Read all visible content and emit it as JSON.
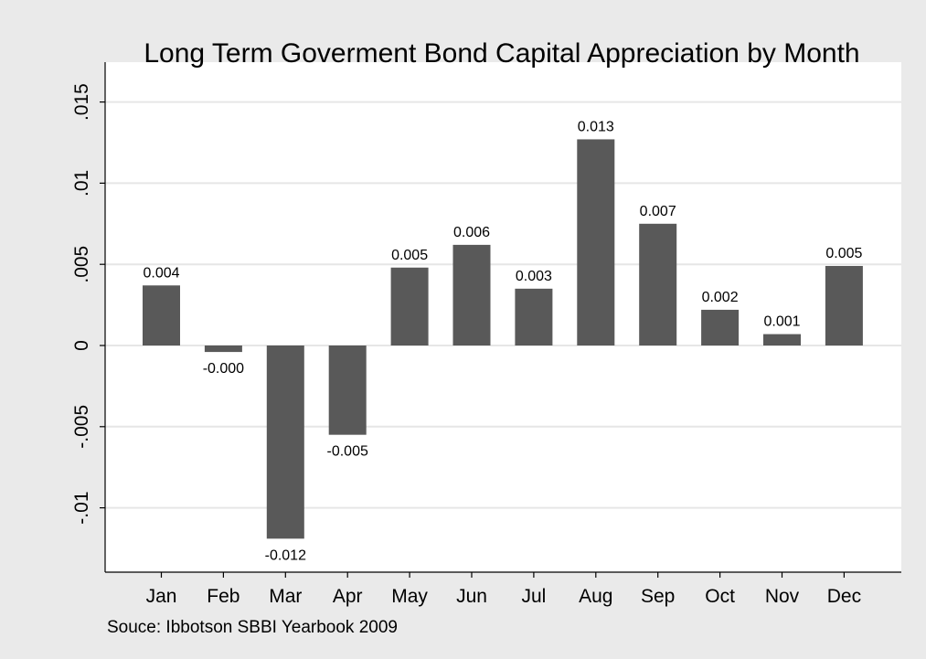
{
  "chart_data": {
    "type": "bar",
    "title": "Long Term Goverment Bond Capital Appreciation by Month",
    "note": "Souce: Ibbotson SBBI Yearbook 2009",
    "xlabel": "",
    "ylabel": "",
    "categories": [
      "Jan",
      "Feb",
      "Mar",
      "Apr",
      "May",
      "Jun",
      "Jul",
      "Aug",
      "Sep",
      "Oct",
      "Nov",
      "Dec"
    ],
    "values": [
      0.0037,
      -0.0004,
      -0.0119,
      -0.0055,
      0.0048,
      0.0062,
      0.0035,
      0.0127,
      0.0075,
      0.0022,
      0.0007,
      0.0049
    ],
    "value_labels": [
      "0.004",
      "-0.000",
      "-0.012",
      "-0.005",
      "0.005",
      "0.006",
      "0.003",
      "0.013",
      "0.007",
      "0.002",
      "0.001",
      "0.005"
    ],
    "yticks": [
      -0.01,
      -0.005,
      0,
      0.005,
      0.01,
      0.015
    ],
    "ytick_labels": [
      "-.01",
      "-.005",
      "0",
      ".005",
      ".01",
      ".015"
    ],
    "ylim": [
      -0.0139,
      0.0155
    ],
    "grid": true,
    "bar_color": "#595959",
    "plot_background": "#ffffff",
    "page_background": "#eaeaea"
  }
}
